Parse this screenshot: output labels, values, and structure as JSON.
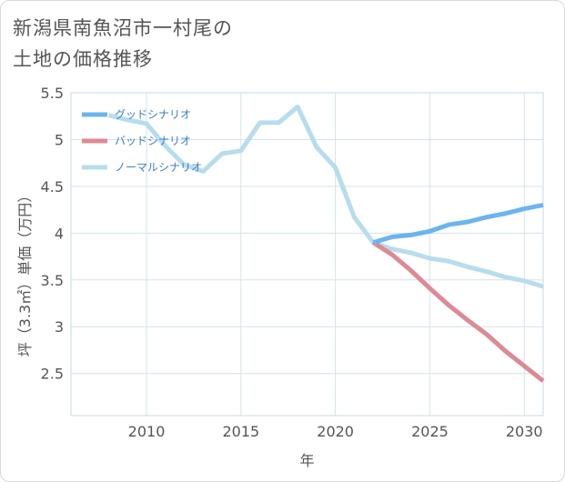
{
  "chart_data": {
    "type": "line",
    "title_line1": "新潟県南魚沼市一村尾の",
    "title_line2": "土地の価格推移",
    "xlabel": "年",
    "ylabel": "坪（3.3㎡）単価（万円）",
    "xlim": [
      2006,
      2031
    ],
    "ylim": [
      2.05,
      5.5
    ],
    "x_ticks": [
      2010,
      2015,
      2020,
      2025,
      2030
    ],
    "y_ticks": [
      2.5,
      3,
      3.5,
      4,
      4.5,
      5,
      5.5
    ],
    "x_tick_labels": [
      "2010",
      "2015",
      "2020",
      "2025",
      "2030"
    ],
    "y_tick_labels": [
      "2.5",
      "3",
      "3.5",
      "4",
      "4.5",
      "5",
      "5.5"
    ],
    "legend": {
      "position": "top-left"
    },
    "series": [
      {
        "name": "グッドシナリオ",
        "color": "#6cb4ee",
        "x": [
          2022,
          2023,
          2024,
          2025,
          2026,
          2027,
          2028,
          2029,
          2030,
          2031
        ],
        "y": [
          3.9,
          3.96,
          3.98,
          4.02,
          4.09,
          4.12,
          4.17,
          4.21,
          4.26,
          4.3
        ]
      },
      {
        "name": "バッドシナリオ",
        "color": "#dc8a94",
        "x": [
          2022,
          2023,
          2024,
          2025,
          2026,
          2027,
          2028,
          2029,
          2030,
          2031
        ],
        "y": [
          3.9,
          3.77,
          3.6,
          3.41,
          3.23,
          3.07,
          2.92,
          2.74,
          2.58,
          2.42
        ]
      },
      {
        "name": "ノーマルシナリオ",
        "color": "#b7ddec",
        "x": [
          2008,
          2009,
          2010,
          2011,
          2012,
          2013,
          2014,
          2015,
          2016,
          2017,
          2018,
          2019,
          2020,
          2021,
          2022,
          2023,
          2024,
          2025,
          2026,
          2027,
          2028,
          2029,
          2030,
          2031
        ],
        "y": [
          5.26,
          5.21,
          5.17,
          4.93,
          4.73,
          4.66,
          4.85,
          4.88,
          5.18,
          5.18,
          5.35,
          4.92,
          4.7,
          4.17,
          3.9,
          3.83,
          3.79,
          3.73,
          3.7,
          3.64,
          3.59,
          3.53,
          3.49,
          3.43
        ]
      }
    ]
  }
}
